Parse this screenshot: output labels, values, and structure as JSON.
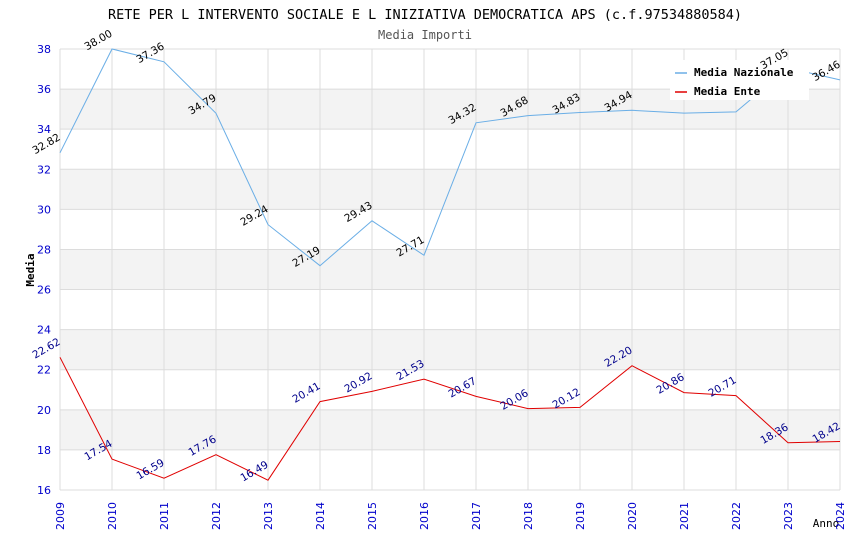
{
  "chart_data": {
    "type": "line",
    "title": "RETE PER L INTERVENTO SOCIALE E L INIZIATIVA DEMOCRATICA APS (c.f.97534880584)",
    "subtitle": "Media Importi",
    "xlabel": "Anno",
    "ylabel": "Media",
    "x": [
      2009,
      2010,
      2011,
      2012,
      2013,
      2014,
      2015,
      2016,
      2017,
      2018,
      2019,
      2020,
      2021,
      2022,
      2023,
      2024
    ],
    "ylim": [
      16,
      38
    ],
    "y_ticks": [
      16,
      18,
      20,
      22,
      24,
      26,
      28,
      30,
      32,
      34,
      36,
      38
    ],
    "grid": true,
    "legend_position": "top-right",
    "series": [
      {
        "name": "Media Nazionale",
        "color": "#6aaee6",
        "label_color": "#000000",
        "values": [
          32.82,
          38.0,
          37.36,
          34.79,
          29.24,
          27.19,
          29.43,
          27.71,
          34.32,
          34.68,
          34.83,
          34.94,
          34.8,
          34.86,
          37.05,
          36.46
        ],
        "data_labels": [
          "32.82",
          "38.00",
          "37.36",
          "34.79",
          "29.24",
          "27.19",
          "29.43",
          "27.71",
          "34.32",
          "34.68",
          "34.83",
          "34.94",
          "",
          "",
          "37.05",
          "36.46"
        ]
      },
      {
        "name": "Media Ente",
        "color": "#e00000",
        "label_color": "#00008b",
        "values": [
          22.62,
          17.54,
          16.59,
          17.76,
          16.49,
          20.41,
          20.92,
          21.53,
          20.67,
          20.06,
          20.12,
          22.2,
          20.86,
          20.71,
          18.36,
          18.42
        ],
        "data_labels": [
          "22.62",
          "17.54",
          "16.59",
          "17.76",
          "16.49",
          "20.41",
          "20.92",
          "21.53",
          "20.67",
          "20.06",
          "20.12",
          "22.20",
          "20.86",
          "20.71",
          "18.36",
          "18.42"
        ]
      }
    ]
  }
}
